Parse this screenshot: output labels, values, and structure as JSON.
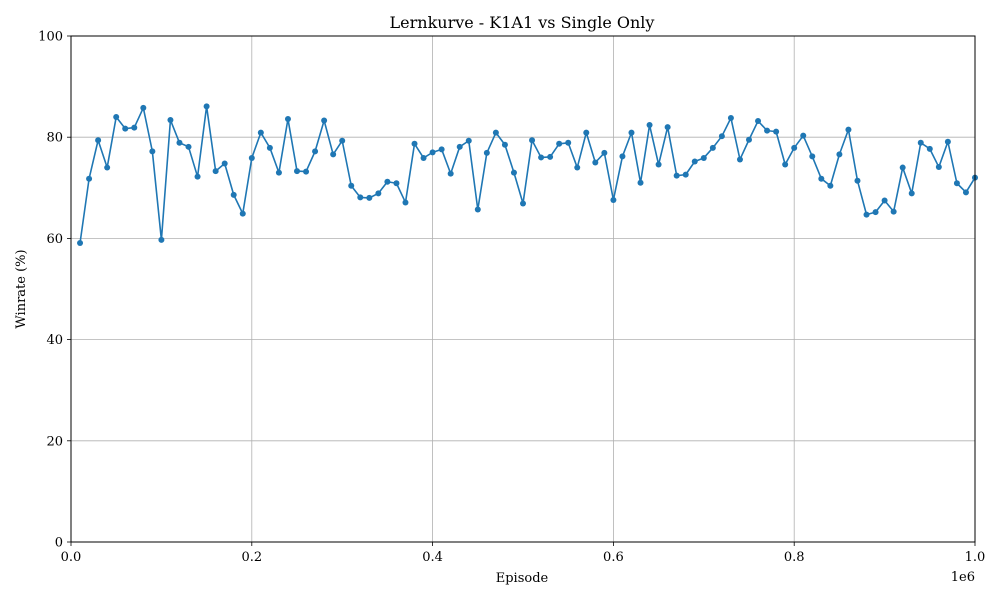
{
  "chart_data": {
    "type": "line",
    "title": "Lernkurve - K1A1 vs Single Only",
    "xlabel": "Episode",
    "ylabel": "Winrate (%)",
    "x_offset_label": "1e6",
    "xlim": [
      0,
      1000000
    ],
    "ylim": [
      0,
      100
    ],
    "grid": true,
    "legend": "none",
    "line_color": "#1f77b4",
    "x_ticks": [
      0,
      200000,
      400000,
      600000,
      800000,
      1000000
    ],
    "x_tick_labels": [
      "0.0",
      "0.2",
      "0.4",
      "0.6",
      "0.8",
      "1.0"
    ],
    "y_ticks": [
      0,
      20,
      40,
      60,
      80,
      100
    ],
    "y_tick_labels": [
      "0",
      "20",
      "40",
      "60",
      "80",
      "100"
    ],
    "series": [
      {
        "x": [
          10000,
          20000,
          30000,
          40000,
          50000,
          60000,
          70000,
          80000,
          90000,
          100000,
          110000,
          120000,
          130000,
          140000,
          150000,
          160000,
          170000,
          180000,
          190000,
          200000,
          210000,
          220000,
          230000,
          240000,
          250000,
          260000,
          270000,
          280000,
          290000,
          300000,
          310000,
          320000,
          330000,
          340000,
          350000,
          360000,
          370000,
          380000,
          390000,
          400000,
          410000,
          420000,
          430000,
          440000,
          450000,
          460000,
          470000,
          480000,
          490000,
          500000,
          510000,
          520000,
          530000,
          540000,
          550000,
          560000,
          570000,
          580000,
          590000,
          600000,
          610000,
          620000,
          630000,
          640000,
          650000,
          660000,
          670000,
          680000,
          690000,
          700000,
          710000,
          720000,
          730000,
          740000,
          750000,
          760000,
          770000,
          780000,
          790000,
          800000,
          810000,
          820000,
          830000,
          840000,
          850000,
          860000,
          870000,
          880000,
          890000,
          900000,
          910000,
          920000,
          930000,
          940000,
          950000,
          960000,
          970000,
          980000,
          990000,
          1000000
        ],
        "y": [
          59.1,
          71.8,
          79.4,
          74.0,
          84.0,
          81.7,
          81.9,
          85.8,
          77.2,
          59.7,
          83.4,
          78.9,
          78.1,
          72.2,
          86.1,
          73.3,
          74.8,
          68.6,
          64.9,
          75.9,
          80.9,
          77.9,
          73.0,
          83.6,
          73.3,
          73.2,
          77.2,
          83.3,
          76.6,
          79.3,
          70.4,
          68.1,
          68.0,
          68.9,
          71.2,
          70.9,
          67.1,
          78.7,
          75.9,
          77.0,
          77.6,
          72.8,
          78.1,
          79.3,
          65.7,
          76.9,
          80.9,
          78.5,
          73.0,
          66.9,
          79.4,
          76.0,
          76.1,
          78.7,
          78.9,
          74.0,
          80.9,
          75.0,
          76.9,
          67.6,
          76.2,
          80.9,
          71.0,
          82.4,
          74.6,
          82.0,
          72.4,
          72.6,
          75.2,
          75.9,
          77.9,
          80.2,
          83.8,
          75.6,
          79.5,
          83.2,
          81.3,
          81.1,
          74.6,
          77.9,
          80.3,
          76.2,
          71.8,
          70.4,
          76.6,
          81.5,
          71.4,
          64.7,
          65.2,
          67.5,
          65.3,
          74.0,
          68.9,
          78.9,
          77.7,
          74.1,
          79.1,
          70.9,
          69.1,
          72.0
        ]
      }
    ]
  }
}
